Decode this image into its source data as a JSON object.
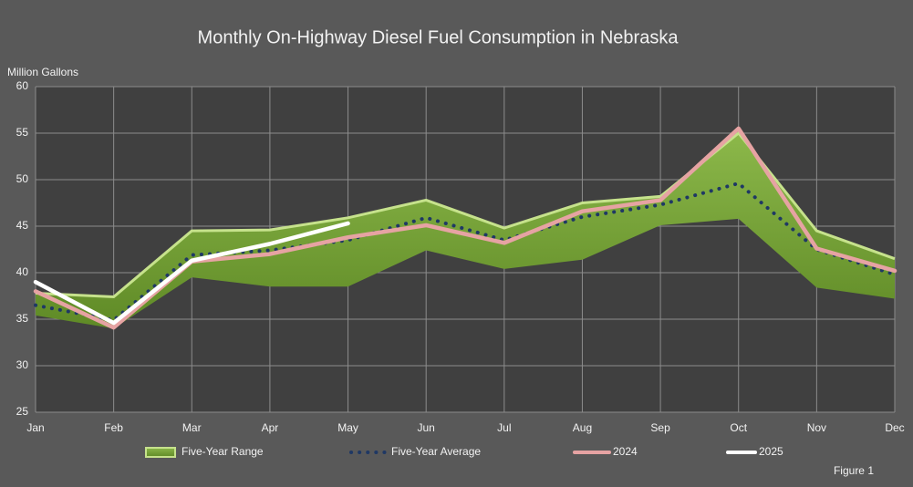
{
  "chart_data": {
    "type": "line",
    "title": "Monthly On-Highway Diesel Fuel Consumption in Nebraska",
    "y_label": "Million Gallons",
    "figure_label": "Figure 1",
    "categories": [
      "Jan",
      "Feb",
      "Mar",
      "Apr",
      "May",
      "Jun",
      "Jul",
      "Aug",
      "Sep",
      "Oct",
      "Nov",
      "Dec"
    ],
    "range": {
      "name": "Five-Year Range",
      "color": "#76a035",
      "edge_color": "#c6e28c",
      "high": [
        37.8,
        37.4,
        44.5,
        44.6,
        45.9,
        47.8,
        44.8,
        47.5,
        48.2,
        55.0,
        44.5,
        41.5
      ],
      "low": [
        35.4,
        34.0,
        39.5,
        38.5,
        38.5,
        42.4,
        40.4,
        41.4,
        45.1,
        45.8,
        38.4,
        37.2
      ]
    },
    "series": [
      {
        "name": "Five-Year Average",
        "color": "#1f3864",
        "dotted": true,
        "values": [
          36.5,
          34.9,
          41.9,
          42.4,
          43.5,
          45.9,
          43.5,
          46.0,
          47.3,
          49.6,
          42.5,
          39.8
        ]
      },
      {
        "name": "2024",
        "color": "#e6a3a3",
        "values": [
          38.0,
          34.1,
          41.2,
          42.0,
          43.8,
          45.1,
          43.2,
          46.6,
          47.8,
          55.5,
          42.6,
          40.2
        ]
      },
      {
        "name": "2025",
        "color": "#ffffff",
        "values": [
          39.0,
          34.6,
          41.3,
          43.1,
          45.3,
          null,
          null,
          null,
          null,
          null,
          null,
          null
        ]
      }
    ],
    "ylim": [
      25,
      60
    ],
    "yticks": [
      25,
      30,
      35,
      40,
      45,
      50,
      55,
      60
    ],
    "grid": true
  }
}
